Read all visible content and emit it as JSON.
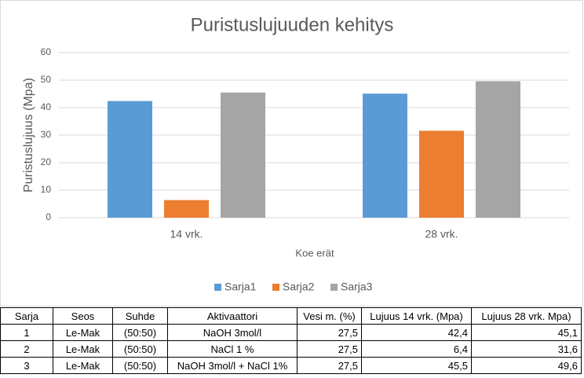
{
  "chart_data": {
    "type": "bar",
    "title": "Puristuslujuuden kehitys",
    "y_label": "Puristuslujuus (Mpa)",
    "x_label": "Koe erät",
    "categories": [
      "14 vrk.",
      "28 vrk."
    ],
    "series": [
      {
        "name": "Sarja1",
        "color": "#5b9bd5",
        "values": [
          42.4,
          45.1
        ]
      },
      {
        "name": "Sarja2",
        "color": "#ed7d31",
        "values": [
          6.4,
          31.6
        ]
      },
      {
        "name": "Sarja3",
        "color": "#a5a5a5",
        "values": [
          45.5,
          49.6
        ]
      }
    ],
    "ylim": [
      0,
      60
    ],
    "yticks": [
      0,
      10,
      20,
      30,
      40,
      50,
      60
    ],
    "grid": true,
    "legend": "bottom"
  },
  "table": {
    "header": [
      "Sarja",
      "Seos",
      "Suhde",
      "Aktivaattori",
      "Vesi m. (%)",
      "Lujuus 14 vrk. (Mpa)",
      "Lujuus 28 vrk. Mpa)"
    ],
    "rows": [
      [
        "1",
        "Le-Mak",
        "(50:50)",
        "NaOH 3mol/l",
        "27,5",
        "42,4",
        "45,1"
      ],
      [
        "2",
        "Le-Mak",
        "(50:50)",
        "NaCl 1 %",
        "27,5",
        "6,4",
        "31,6"
      ],
      [
        "3",
        "Le-Mak",
        "(50:50)",
        "NaOH 3mol/l + NaCl 1%",
        "27,5",
        "45,5",
        "49,6"
      ]
    ]
  }
}
